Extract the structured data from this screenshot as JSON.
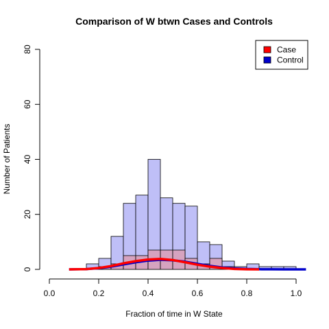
{
  "chart_data": {
    "type": "bar",
    "title": "Comparison of W btwn Cases and Controls",
    "xlabel": "Fraction of time in W State",
    "ylabel": "Number of Patients",
    "xlim": [
      0.0,
      1.05
    ],
    "ylim": [
      0,
      80
    ],
    "xticks": [
      "0.0",
      "0.2",
      "0.4",
      "0.6",
      "0.8",
      "1.0"
    ],
    "yticks": [
      "0",
      "20",
      "40",
      "60",
      "80"
    ],
    "bin_width": 0.05,
    "legend_position": "top-right",
    "series": [
      {
        "name": "Control",
        "color": "#0000cc",
        "fill": "#bfbff7",
        "bins": [
          {
            "x0": 0.15,
            "count": 2
          },
          {
            "x0": 0.2,
            "count": 4
          },
          {
            "x0": 0.25,
            "count": 12
          },
          {
            "x0": 0.3,
            "count": 24
          },
          {
            "x0": 0.35,
            "count": 27
          },
          {
            "x0": 0.4,
            "count": 40
          },
          {
            "x0": 0.45,
            "count": 26
          },
          {
            "x0": 0.5,
            "count": 24
          },
          {
            "x0": 0.55,
            "count": 23
          },
          {
            "x0": 0.6,
            "count": 10
          },
          {
            "x0": 0.65,
            "count": 9
          },
          {
            "x0": 0.7,
            "count": 3
          },
          {
            "x0": 0.75,
            "count": 1
          },
          {
            "x0": 0.8,
            "count": 2
          },
          {
            "x0": 0.85,
            "count": 1
          },
          {
            "x0": 0.9,
            "count": 1
          },
          {
            "x0": 0.95,
            "count": 1
          }
        ],
        "density_curve": {
          "x": [
            0.08,
            0.15,
            0.2,
            0.25,
            0.3,
            0.35,
            0.4,
            0.45,
            0.5,
            0.55,
            0.6,
            0.65,
            0.7,
            0.75,
            0.8,
            0.85,
            0.9,
            0.95,
            1.0,
            1.04
          ],
          "y": [
            0,
            0.1,
            0.4,
            1.0,
            1.8,
            2.6,
            3.2,
            3.5,
            3.3,
            2.8,
            2.0,
            1.3,
            0.7,
            0.35,
            0.15,
            0.05,
            0.02,
            0.01,
            0,
            0
          ]
        }
      },
      {
        "name": "Case",
        "color": "#ff0000",
        "fill": "#d8a0b8",
        "bins": [
          {
            "x0": 0.2,
            "count": 1
          },
          {
            "x0": 0.25,
            "count": 2
          },
          {
            "x0": 0.3,
            "count": 5
          },
          {
            "x0": 0.35,
            "count": 5
          },
          {
            "x0": 0.4,
            "count": 7
          },
          {
            "x0": 0.45,
            "count": 7
          },
          {
            "x0": 0.5,
            "count": 7
          },
          {
            "x0": 0.55,
            "count": 4
          },
          {
            "x0": 0.6,
            "count": 2
          },
          {
            "x0": 0.65,
            "count": 4
          },
          {
            "x0": 0.7,
            "count": 1
          }
        ],
        "density_curve": {
          "x": [
            0.08,
            0.15,
            0.2,
            0.25,
            0.3,
            0.35,
            0.4,
            0.45,
            0.5,
            0.55,
            0.6,
            0.65,
            0.7,
            0.75,
            0.8,
            0.85
          ],
          "y": [
            0,
            0.1,
            0.5,
            1.2,
            2.2,
            3.0,
            3.6,
            3.8,
            3.4,
            2.6,
            1.7,
            1.0,
            0.5,
            0.15,
            0.02,
            0
          ]
        }
      }
    ],
    "legend": [
      {
        "label": "Case",
        "color": "#ff0000"
      },
      {
        "label": "Control",
        "color": "#0000cc"
      }
    ]
  }
}
